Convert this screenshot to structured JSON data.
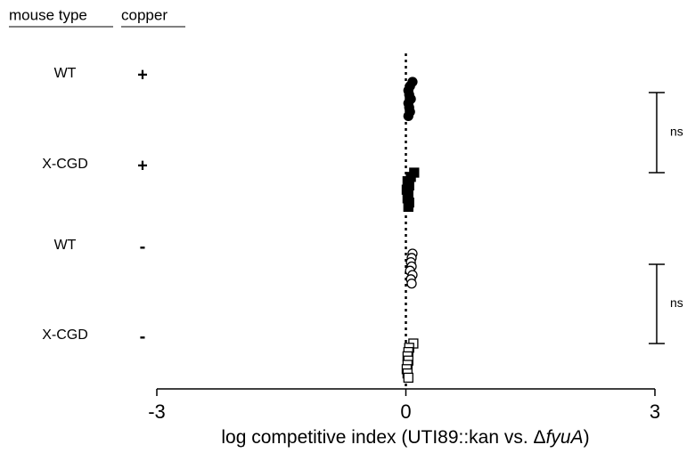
{
  "chart_data": {
    "type": "dotplot",
    "headers": [
      "mouse type",
      "copper"
    ],
    "groups": [
      {
        "mouse_type": "WT",
        "copper": "+",
        "marker": "circle",
        "filled": true,
        "values": [
          0.08,
          0.05,
          0.03,
          0.04,
          0.06,
          0.03,
          0.04,
          0.05,
          0.03
        ]
      },
      {
        "mouse_type": "X-CGD",
        "copper": "+",
        "marker": "square",
        "filled": true,
        "values": [
          0.1,
          0.06,
          0.02,
          0.04,
          0.01,
          0.03,
          0.02,
          0.04,
          0.03
        ]
      },
      {
        "mouse_type": "WT",
        "copper": "-",
        "marker": "circle",
        "filled": false,
        "values": [
          0.08,
          0.07,
          0.06,
          0.07,
          0.05,
          0.08,
          0.06,
          0.07
        ]
      },
      {
        "mouse_type": "X-CGD",
        "copper": "-",
        "marker": "square",
        "filled": false,
        "values": [
          0.09,
          0.04,
          0.03,
          0.02,
          0.03,
          0.02,
          0.01,
          0.02,
          0.03
        ]
      }
    ],
    "reference_x": 0,
    "xlim": [
      -3,
      3
    ],
    "xticks": [
      -3,
      0,
      3
    ],
    "xlabel_parts": [
      "log competitive index (UTI89::kan vs. Δ",
      "fyuA",
      ")"
    ],
    "annotations": [
      {
        "text": "ns",
        "groups": [
          0,
          1
        ]
      },
      {
        "text": "ns",
        "groups": [
          2,
          3
        ]
      }
    ]
  }
}
